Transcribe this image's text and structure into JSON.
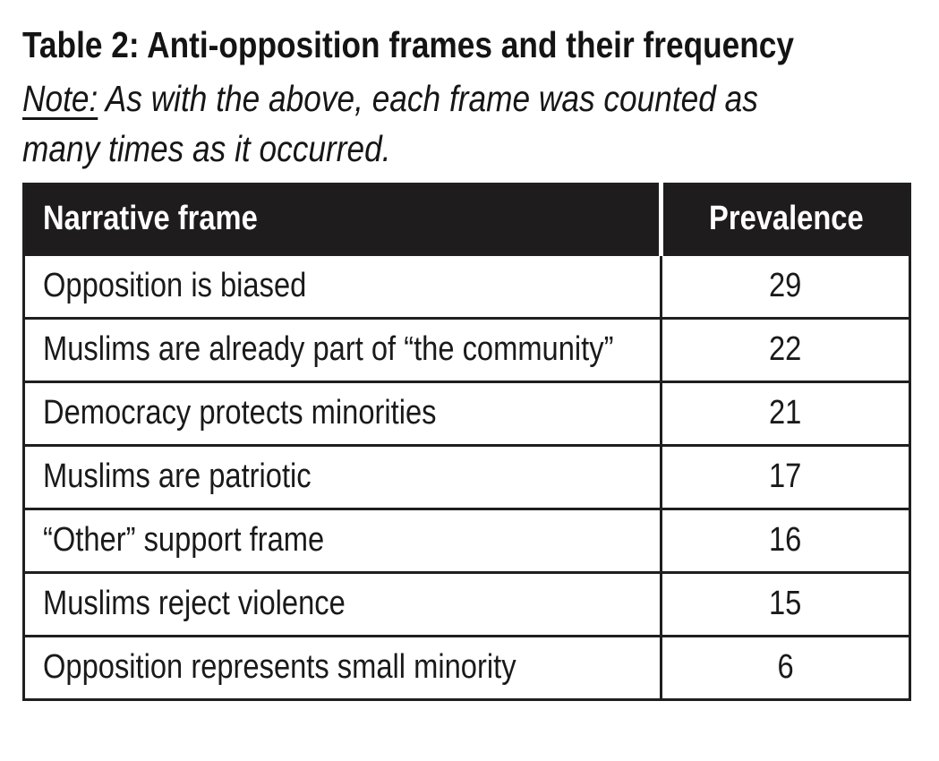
{
  "page": {
    "title": "Table 2: Anti-opposition frames and their frequency",
    "note": {
      "label": "Note:",
      "text": "As with the above, each frame was counted as many times as it occurred."
    }
  },
  "table": {
    "columns": {
      "frame": "Narrative frame",
      "prevalence": "Prevalence"
    },
    "rows": [
      {
        "frame": "Opposition is biased",
        "prevalence": 29
      },
      {
        "frame": "Muslims are already part of “the community”",
        "prevalence": 22
      },
      {
        "frame": "Democracy protects minorities",
        "prevalence": 21
      },
      {
        "frame": "Muslims are patriotic",
        "prevalence": 17
      },
      {
        "frame": "“Other” support frame",
        "prevalence": 16
      },
      {
        "frame": "Muslims reject violence",
        "prevalence": 15
      },
      {
        "frame": "Opposition represents small minority",
        "prevalence": 6
      }
    ]
  },
  "colors": {
    "background": "#ffffff",
    "text": "#1a1a1a",
    "border": "#1f1f1f",
    "header_bg": "#1e1c1c",
    "header_text": "#ffffff"
  }
}
